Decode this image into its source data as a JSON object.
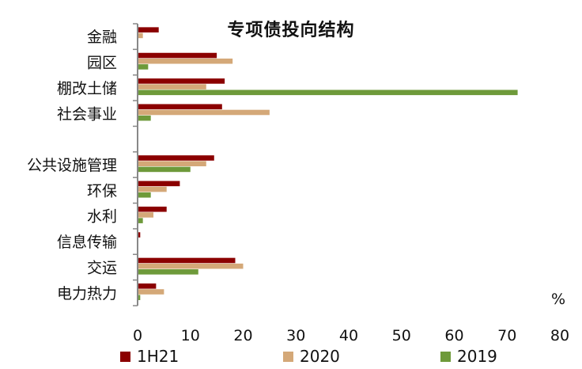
{
  "chart_data": {
    "type": "bar",
    "orientation": "horizontal",
    "title": "专项债投向结构",
    "unit_label": "%",
    "categories": [
      "金融",
      "园区",
      "棚改土储",
      "社会事业",
      "",
      "公共设施管理",
      "环保",
      "水利",
      "信息传输",
      "交运",
      "电力热力"
    ],
    "series": [
      {
        "name": "1H21",
        "color": "#8B0000",
        "values": [
          4,
          15,
          16.5,
          16,
          null,
          14.5,
          8,
          5.5,
          0.5,
          18.5,
          3.5
        ]
      },
      {
        "name": "2020",
        "color": "#D4A878",
        "values": [
          1,
          18,
          13,
          25,
          null,
          13,
          5.5,
          3,
          0,
          20,
          5
        ]
      },
      {
        "name": "2019",
        "color": "#6E9A3A",
        "values": [
          0,
          2,
          72,
          2.5,
          null,
          10,
          2.5,
          1,
          0,
          11.5,
          0.5
        ]
      }
    ],
    "xlim": [
      0,
      80
    ],
    "xticks": [
      0,
      10,
      20,
      30,
      40,
      50,
      60,
      70,
      80
    ],
    "grid": false,
    "legend_position": "bottom"
  }
}
